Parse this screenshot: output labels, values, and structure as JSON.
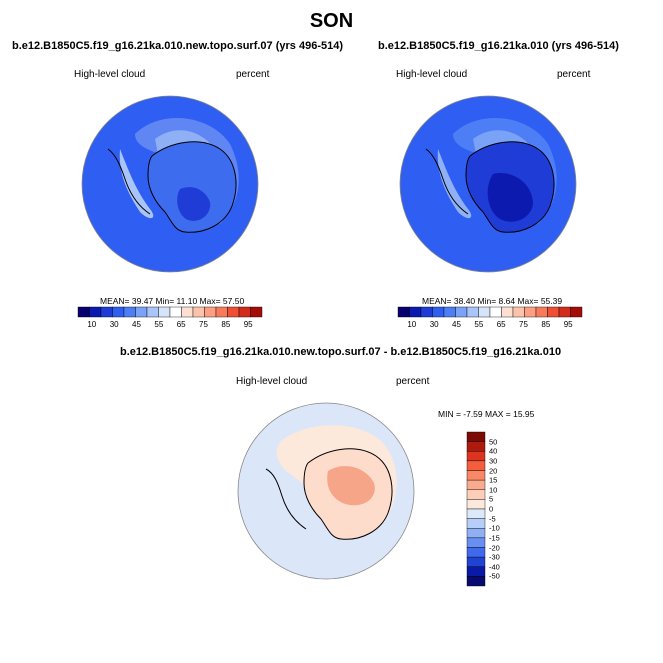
{
  "figure": {
    "season_title": "SON"
  },
  "panels": [
    {
      "title": "b.e12.B1850C5.f19_g16.21ka.010.new.topo.surf.07 (yrs 496-514)",
      "variable": "High-level cloud",
      "units": "percent",
      "stats": {
        "mean": "39.47",
        "min": "11.10",
        "max": "57.50"
      },
      "stats_text": "MEAN=  39.47  Min=  11.10  Max=  57.50"
    },
    {
      "title": "b.e12.B1850C5.f19_g16.21ka.010 (yrs 496-514)",
      "variable": "High-level cloud",
      "units": "percent",
      "stats": {
        "mean": "38.40",
        "min": "8.64",
        "max": "55.39"
      },
      "stats_text": "MEAN=  38.40  Min=   8.64  Max=  55.39"
    }
  ],
  "difference_panel": {
    "title": "b.e12.B1850C5.f19_g16.21ka.010.new.topo.surf.07 - b.e12.B1850C5.f19_g16.21ka.010",
    "variable": "High-level cloud",
    "units": "percent",
    "stats": {
      "min": "-7.59",
      "max": "15.95"
    },
    "stats_text": "MIN =  -7.59 MAX =  15.95"
  },
  "colorbar_abs": {
    "labels": [
      "10",
      "30",
      "45",
      "55",
      "65",
      "75",
      "85",
      "95"
    ],
    "colors": [
      "#08006e",
      "#0c1ab0",
      "#1f3cd6",
      "#2f5ef2",
      "#4d7ef5",
      "#7aa2f7",
      "#a8c4f8",
      "#d6e4fb",
      "#ffffff",
      "#fde0d2",
      "#fcc3ac",
      "#fba083",
      "#f77a5a",
      "#ec4f34",
      "#d42a1a",
      "#a40d06"
    ]
  },
  "colorbar_diff": {
    "labels": [
      "50",
      "40",
      "30",
      "20",
      "15",
      "10",
      "5",
      "0",
      "-5",
      "-10",
      "-15",
      "-20",
      "-30",
      "-40",
      "-50"
    ],
    "colors": [
      "#7d0b03",
      "#ae1a0d",
      "#dc3420",
      "#f45d3d",
      "#f98866",
      "#fbab8d",
      "#fdceb7",
      "#fde8dc",
      "#dce9fb",
      "#b7cff8",
      "#8fb0f5",
      "#6890f2",
      "#4069ee",
      "#2043d4",
      "#0b1aa6",
      "#070a6e"
    ]
  },
  "map_colors": {
    "ocean_abs": "#2f5ef2",
    "ocean_diff": "#dbe7f9",
    "land_diff": "#fddccb",
    "diff_high": "#f7a588"
  }
}
